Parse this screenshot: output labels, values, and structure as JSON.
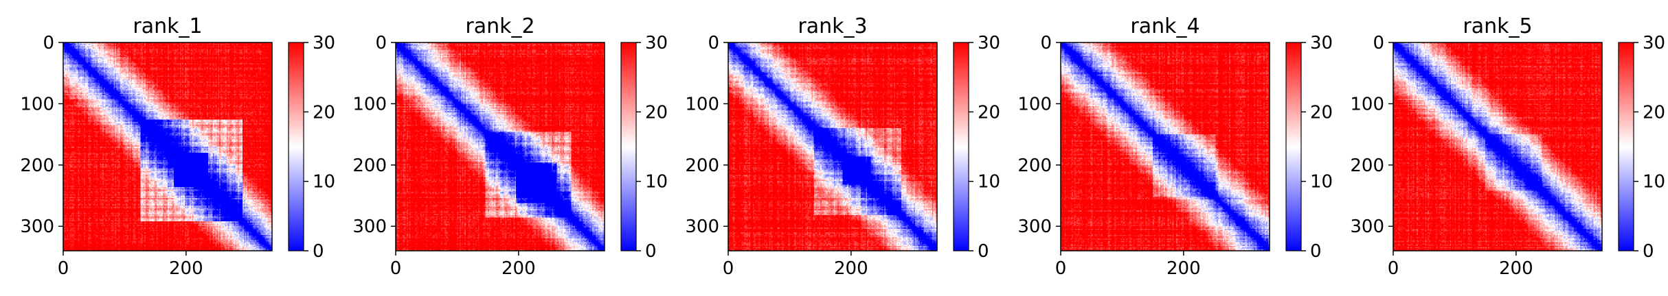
{
  "chart_data": [
    {
      "type": "heatmap",
      "title": "rank_1",
      "n": 340,
      "xticks": [
        0,
        200
      ],
      "yticks": [
        0,
        100,
        200,
        300
      ],
      "colorbar": {
        "min": 0,
        "max": 30,
        "ticks": [
          0,
          10,
          20,
          30
        ],
        "colors": [
          "#0000ff",
          "#ffffff",
          "#ff0000"
        ]
      },
      "blocks": [
        {
          "start": 125,
          "end": 290,
          "strength": 0.85
        },
        {
          "start": 180,
          "end": 235,
          "strength": 1.0
        }
      ]
    },
    {
      "type": "heatmap",
      "title": "rank_2",
      "n": 340,
      "xticks": [
        0,
        200
      ],
      "yticks": [
        0,
        100,
        200,
        300
      ],
      "colorbar": {
        "min": 0,
        "max": 30,
        "ticks": [
          0,
          10,
          20,
          30
        ],
        "colors": [
          "#0000ff",
          "#ffffff",
          "#ff0000"
        ]
      },
      "blocks": [
        {
          "start": 145,
          "end": 285,
          "strength": 0.8
        },
        {
          "start": 195,
          "end": 260,
          "strength": 1.0
        }
      ]
    },
    {
      "type": "heatmap",
      "title": "rank_3",
      "n": 340,
      "xticks": [
        0,
        200
      ],
      "yticks": [
        0,
        100,
        200,
        300
      ],
      "colorbar": {
        "min": 0,
        "max": 30,
        "ticks": [
          0,
          10,
          20,
          30
        ],
        "colors": [
          "#0000ff",
          "#ffffff",
          "#ff0000"
        ]
      },
      "blocks": [
        {
          "start": 140,
          "end": 280,
          "strength": 0.55
        },
        {
          "start": 185,
          "end": 230,
          "strength": 0.9
        }
      ]
    },
    {
      "type": "heatmap",
      "title": "rank_4",
      "n": 340,
      "xticks": [
        0,
        200
      ],
      "yticks": [
        0,
        100,
        200,
        300
      ],
      "colorbar": {
        "min": 0,
        "max": 30,
        "ticks": [
          0,
          10,
          20,
          30
        ],
        "colors": [
          "#0000ff",
          "#ffffff",
          "#ff0000"
        ]
      },
      "blocks": [
        {
          "start": 150,
          "end": 250,
          "strength": 0.45
        }
      ]
    },
    {
      "type": "heatmap",
      "title": "rank_5",
      "n": 340,
      "xticks": [
        0,
        200
      ],
      "yticks": [
        0,
        100,
        200,
        300
      ],
      "colorbar": {
        "min": 0,
        "max": 30,
        "ticks": [
          0,
          10,
          20,
          30
        ],
        "colors": [
          "#0000ff",
          "#ffffff",
          "#ff0000"
        ]
      },
      "blocks": [
        {
          "start": 150,
          "end": 240,
          "strength": 0.4
        }
      ]
    }
  ]
}
